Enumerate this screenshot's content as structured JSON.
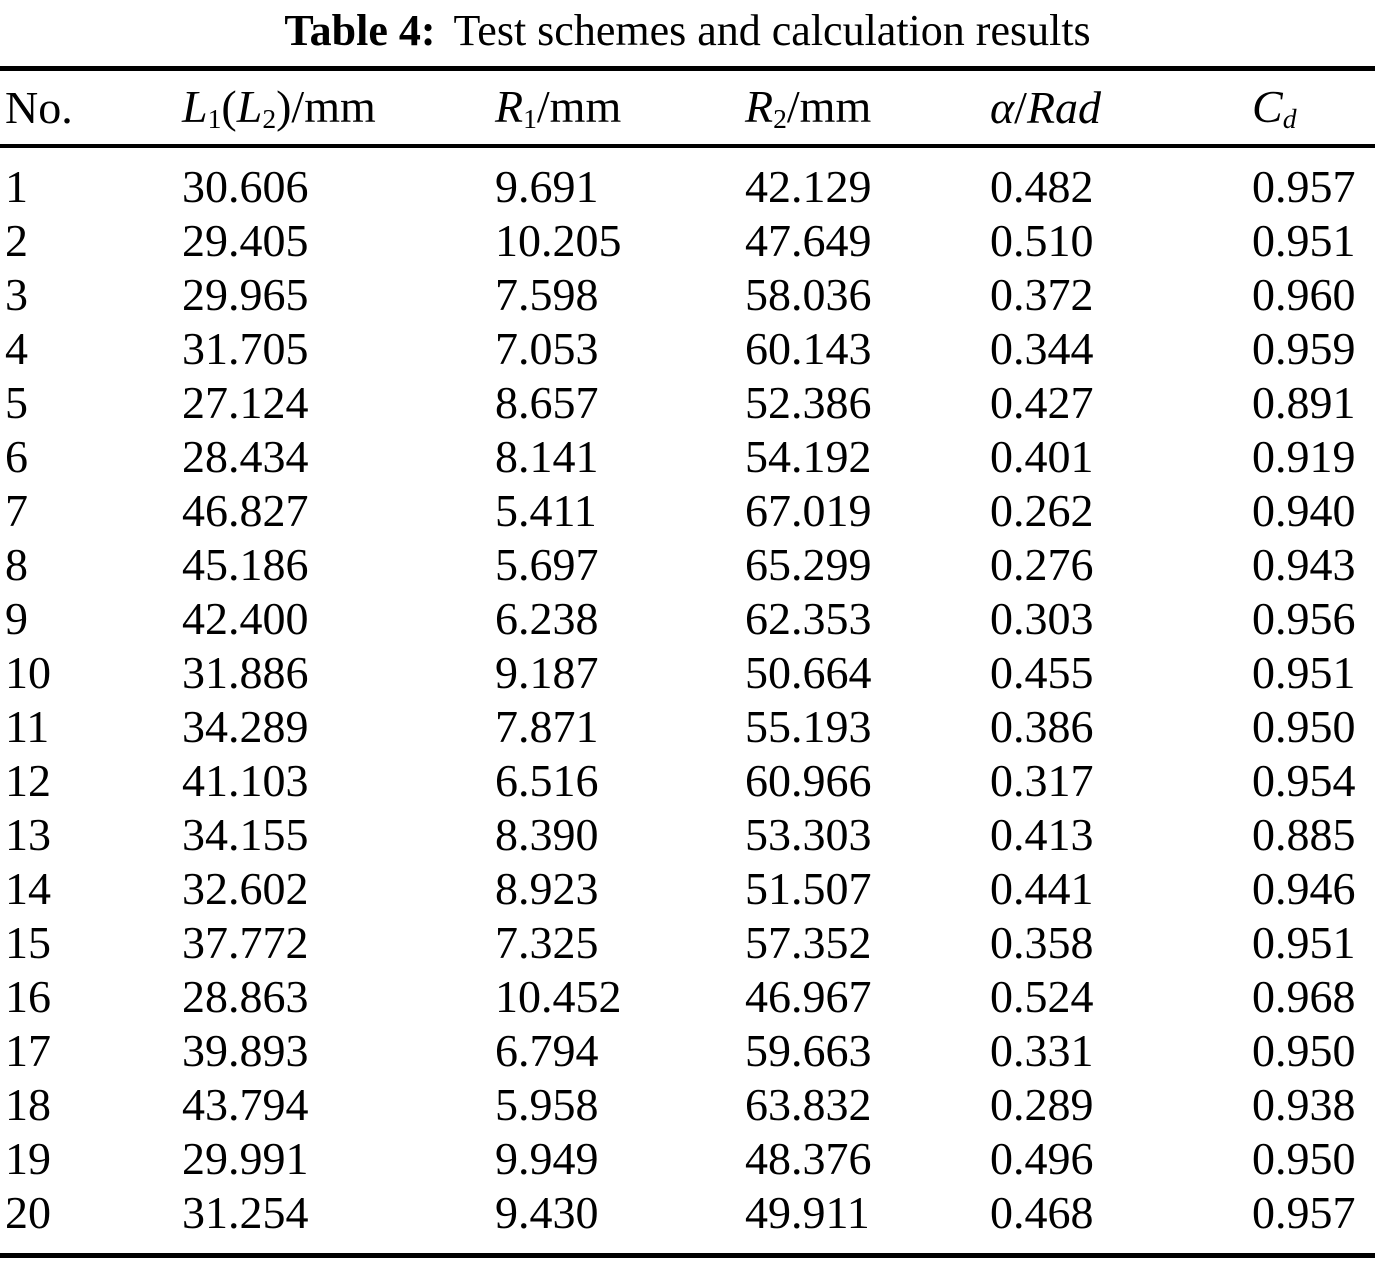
{
  "caption": {
    "label": "Table 4:",
    "text": "Test schemes and calculation results"
  },
  "table": {
    "columns": [
      {
        "id": "no",
        "segments": [
          {
            "t": "No.",
            "style": "roman"
          }
        ]
      },
      {
        "id": "l1-l2-mm",
        "segments": [
          {
            "t": "L",
            "style": "italic"
          },
          {
            "t": "1",
            "style": "sub"
          },
          {
            "t": "(",
            "style": "roman"
          },
          {
            "t": "L",
            "style": "italic"
          },
          {
            "t": "2",
            "style": "sub"
          },
          {
            "t": ")/mm",
            "style": "roman"
          }
        ]
      },
      {
        "id": "r1-mm",
        "segments": [
          {
            "t": "R",
            "style": "italic"
          },
          {
            "t": "1",
            "style": "sub"
          },
          {
            "t": "/mm",
            "style": "roman"
          }
        ]
      },
      {
        "id": "r2-mm",
        "segments": [
          {
            "t": "R",
            "style": "italic"
          },
          {
            "t": "2",
            "style": "sub"
          },
          {
            "t": "/mm",
            "style": "roman"
          }
        ]
      },
      {
        "id": "alpha-rad",
        "segments": [
          {
            "t": "α",
            "style": "italic"
          },
          {
            "t": "/",
            "style": "roman"
          },
          {
            "t": "Rad",
            "style": "italic"
          }
        ]
      },
      {
        "id": "cd",
        "segments": [
          {
            "t": "C",
            "style": "italic"
          },
          {
            "t": "d",
            "style": "subitalic"
          }
        ]
      }
    ],
    "rows": [
      [
        "1",
        "30.606",
        "9.691",
        "42.129",
        "0.482",
        "0.957"
      ],
      [
        "2",
        "29.405",
        "10.205",
        "47.649",
        "0.510",
        "0.951"
      ],
      [
        "3",
        "29.965",
        "7.598",
        "58.036",
        "0.372",
        "0.960"
      ],
      [
        "4",
        "31.705",
        "7.053",
        "60.143",
        "0.344",
        "0.959"
      ],
      [
        "5",
        "27.124",
        "8.657",
        "52.386",
        "0.427",
        "0.891"
      ],
      [
        "6",
        "28.434",
        "8.141",
        "54.192",
        "0.401",
        "0.919"
      ],
      [
        "7",
        "46.827",
        "5.411",
        "67.019",
        "0.262",
        "0.940"
      ],
      [
        "8",
        "45.186",
        "5.697",
        "65.299",
        "0.276",
        "0.943"
      ],
      [
        "9",
        "42.400",
        "6.238",
        "62.353",
        "0.303",
        "0.956"
      ],
      [
        "10",
        "31.886",
        "9.187",
        "50.664",
        "0.455",
        "0.951"
      ],
      [
        "11",
        "34.289",
        "7.871",
        "55.193",
        "0.386",
        "0.950"
      ],
      [
        "12",
        "41.103",
        "6.516",
        "60.966",
        "0.317",
        "0.954"
      ],
      [
        "13",
        "34.155",
        "8.390",
        "53.303",
        "0.413",
        "0.885"
      ],
      [
        "14",
        "32.602",
        "8.923",
        "51.507",
        "0.441",
        "0.946"
      ],
      [
        "15",
        "37.772",
        "7.325",
        "57.352",
        "0.358",
        "0.951"
      ],
      [
        "16",
        "28.863",
        "10.452",
        "46.967",
        "0.524",
        "0.968"
      ],
      [
        "17",
        "39.893",
        "6.794",
        "59.663",
        "0.331",
        "0.950"
      ],
      [
        "18",
        "43.794",
        "5.958",
        "63.832",
        "0.289",
        "0.938"
      ],
      [
        "19",
        "29.991",
        "9.949",
        "48.376",
        "0.496",
        "0.950"
      ],
      [
        "20",
        "31.254",
        "9.430",
        "49.911",
        "0.468",
        "0.957"
      ]
    ]
  }
}
